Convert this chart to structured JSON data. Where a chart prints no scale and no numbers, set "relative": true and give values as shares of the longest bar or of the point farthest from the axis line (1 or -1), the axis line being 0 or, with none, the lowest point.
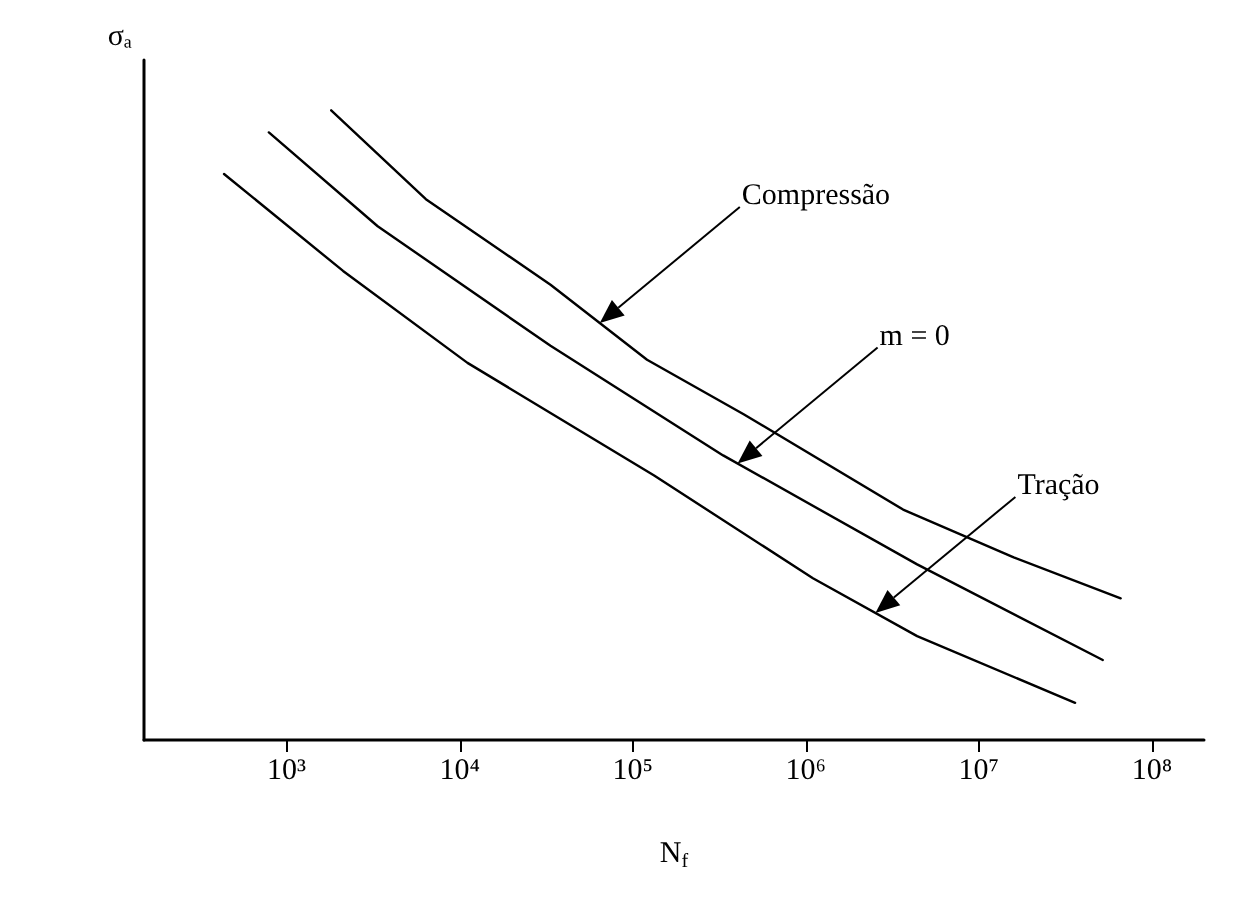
{
  "chart_data": {
    "type": "line",
    "relative": true,
    "log": "x",
    "xlabel": "N$_{f}$",
    "ylabel": "σₐ",
    "xlim": [
      150,
      200000000
    ],
    "xticks": [
      {
        "value": 1000,
        "label": "10³"
      },
      {
        "value": 10000,
        "label": "10⁴"
      },
      {
        "value": 100000,
        "label": "10⁵"
      },
      {
        "value": 1000000,
        "label": "10⁶"
      },
      {
        "value": 10000000,
        "label": "10⁷"
      },
      {
        "value": 100000000,
        "label": "10⁸"
      }
    ],
    "grid": false,
    "marker": "none",
    "line_style": "solid",
    "series": [
      {
        "color": "#000000",
        "x": [
          1810,
          6380,
          33500,
          121000,
          440000,
          3650000,
          15900000,
          66000000
        ],
        "values": [
          1,
          0.859,
          0.723,
          0.604,
          0.517,
          0.366,
          0.29,
          0.225
        ]
      },
      {
        "color": "#000000",
        "x": [
          790,
          3360,
          33500,
          333000,
          4400000,
          52000000
        ],
        "values": [
          0.965,
          0.816,
          0.626,
          0.452,
          0.279,
          0.127
        ]
      },
      {
        "color": "#000000",
        "x": [
          435,
          2120,
          11100,
          133000,
          1100000,
          4400000,
          36000000
        ],
        "values": [
          0.899,
          0.745,
          0.599,
          0.42,
          0.257,
          0.165,
          0.059
        ]
      }
    ],
    "annotations": [
      "Compressão",
      "m = 0",
      "Tração"
    ]
  }
}
